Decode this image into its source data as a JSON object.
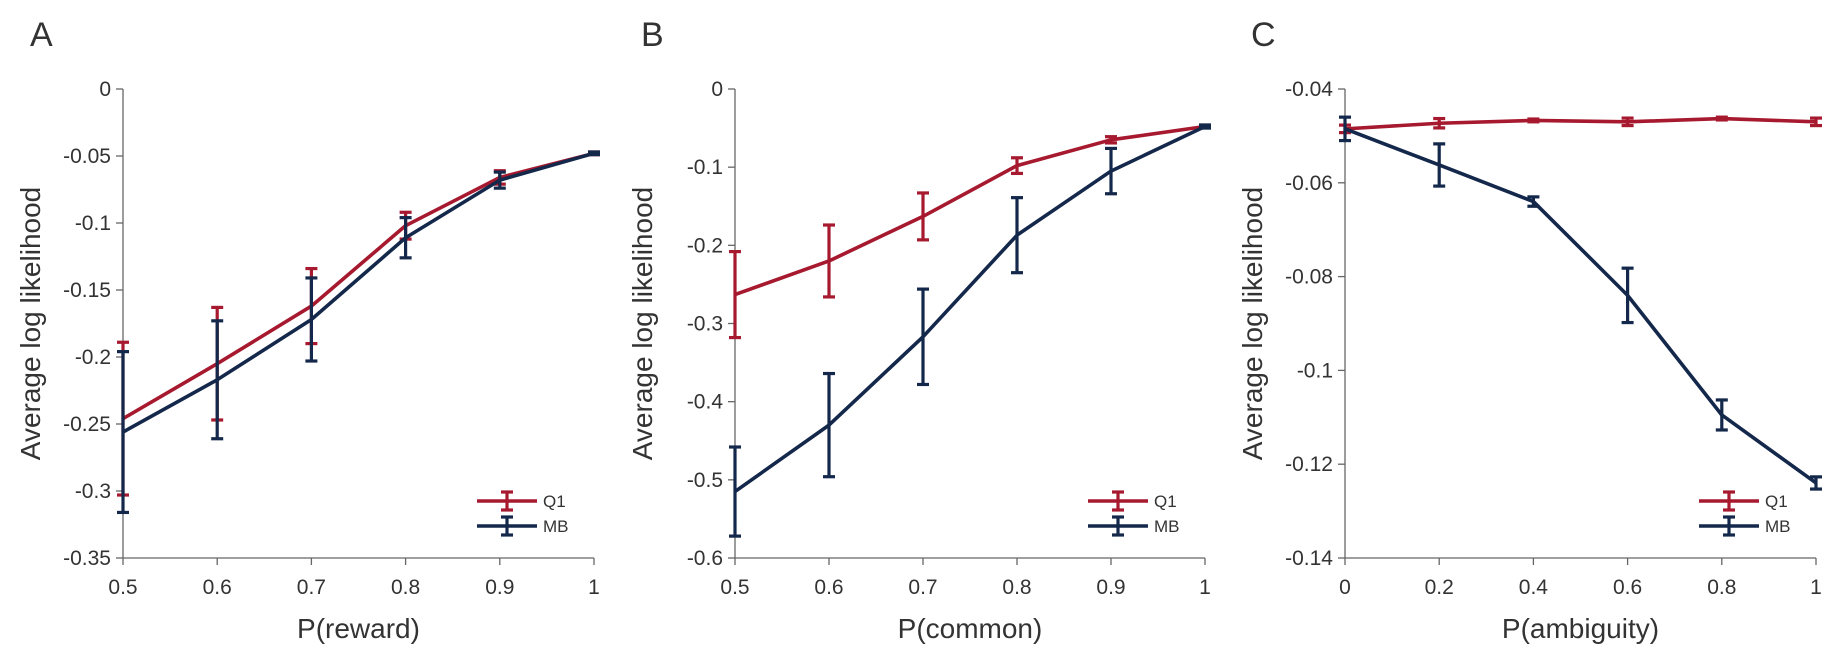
{
  "figure": {
    "colors": {
      "Q1": "#a6192e",
      "MB": "#14284b",
      "axis": "#666666",
      "text": "#333333"
    }
  },
  "chart_data": [
    {
      "type": "line",
      "panel_label": "A",
      "xlabel": "P(reward)",
      "ylabel": "Average log likelihood",
      "xlim": [
        0.5,
        1
      ],
      "ylim": [
        -0.35,
        0
      ],
      "x": [
        0.5,
        0.6,
        0.7,
        0.8,
        0.9,
        1
      ],
      "xticks": [
        "0.5",
        "0.6",
        "0.7",
        "0.8",
        "0.9",
        "1"
      ],
      "yticks": [
        {
          "v": 0,
          "label": "0"
        },
        {
          "v": -0.05,
          "label": "-0.05"
        },
        {
          "v": -0.1,
          "label": "-0.1"
        },
        {
          "v": -0.15,
          "label": "-0.15"
        },
        {
          "v": -0.2,
          "label": "-0.2"
        },
        {
          "v": -0.25,
          "label": "-0.25"
        },
        {
          "v": -0.3,
          "label": "-0.3"
        },
        {
          "v": -0.35,
          "label": "-0.35"
        }
      ],
      "legend": "bottom-right",
      "series": [
        {
          "name": "Q1",
          "values": [
            -0.246,
            -0.205,
            -0.162,
            -0.102,
            -0.066,
            -0.048
          ],
          "err": [
            0.057,
            0.042,
            0.028,
            0.01,
            0.005,
            0.001
          ]
        },
        {
          "name": "MB",
          "values": [
            -0.256,
            -0.217,
            -0.172,
            -0.111,
            -0.068,
            -0.048
          ],
          "err": [
            0.06,
            0.044,
            0.031,
            0.015,
            0.006,
            0.001
          ]
        }
      ]
    },
    {
      "type": "line",
      "panel_label": "B",
      "xlabel": "P(common)",
      "ylabel": "Average log likelihood",
      "xlim": [
        0.5,
        1
      ],
      "ylim": [
        -0.6,
        0
      ],
      "x": [
        0.5,
        0.6,
        0.7,
        0.8,
        0.9,
        1
      ],
      "xticks": [
        "0.5",
        "0.6",
        "0.7",
        "0.8",
        "0.9",
        "1"
      ],
      "yticks": [
        {
          "v": 0,
          "label": "0"
        },
        {
          "v": -0.1,
          "label": "-0.1"
        },
        {
          "v": -0.2,
          "label": "-0.2"
        },
        {
          "v": -0.3,
          "label": "-0.3"
        },
        {
          "v": -0.4,
          "label": "-0.4"
        },
        {
          "v": -0.5,
          "label": "-0.5"
        },
        {
          "v": -0.6,
          "label": "-0.6"
        }
      ],
      "legend": "bottom-right",
      "series": [
        {
          "name": "Q1",
          "values": [
            -0.263,
            -0.22,
            -0.163,
            -0.098,
            -0.065,
            -0.048
          ],
          "err": [
            0.055,
            0.046,
            0.03,
            0.01,
            0.004,
            0.001
          ]
        },
        {
          "name": "MB",
          "values": [
            -0.515,
            -0.43,
            -0.317,
            -0.187,
            -0.105,
            -0.048
          ],
          "err": [
            0.057,
            0.066,
            0.061,
            0.048,
            0.029,
            0.002
          ]
        }
      ]
    },
    {
      "type": "line",
      "panel_label": "C",
      "xlabel": "P(ambiguity)",
      "ylabel": "Average log likelihood",
      "xlim": [
        0,
        1
      ],
      "ylim": [
        -0.14,
        -0.04
      ],
      "x": [
        0,
        0.2,
        0.4,
        0.6,
        0.8,
        1
      ],
      "xticks": [
        "0",
        "0.2",
        "0.4",
        "0.6",
        "0.8",
        "1"
      ],
      "yticks": [
        {
          "v": -0.04,
          "label": "-0.04"
        },
        {
          "v": -0.06,
          "label": "-0.06"
        },
        {
          "v": -0.08,
          "label": "-0.08"
        },
        {
          "v": -0.1,
          "label": "-0.1"
        },
        {
          "v": -0.12,
          "label": "-0.12"
        },
        {
          "v": -0.14,
          "label": "-0.14"
        }
      ],
      "legend": "bottom-right",
      "series": [
        {
          "name": "Q1",
          "values": [
            -0.0485,
            -0.0473,
            -0.0467,
            -0.047,
            -0.0463,
            -0.047
          ],
          "err": [
            0.0008,
            0.001,
            0.0003,
            0.0008,
            0.0003,
            0.0008
          ]
        },
        {
          "name": "MB",
          "values": [
            -0.0485,
            -0.0562,
            -0.064,
            -0.084,
            -0.1095,
            -0.124
          ],
          "err": [
            0.0025,
            0.0045,
            0.001,
            0.0058,
            0.0032,
            0.0013
          ]
        }
      ]
    }
  ]
}
